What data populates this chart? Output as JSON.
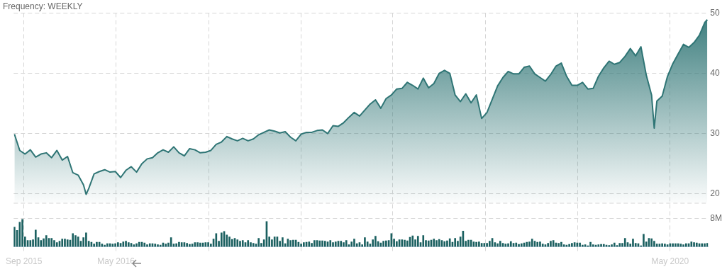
{
  "chart_data": {
    "type": "area",
    "title": "Frequency: WEEKLY",
    "x": [
      "2015-08-07",
      "2015-08-14",
      "2015-08-21",
      "2015-08-28",
      "2015-09-04",
      "2015-09-11",
      "2015-09-18",
      "2015-09-25",
      "2015-10-02",
      "2015-10-09",
      "2015-10-16",
      "2015-10-23",
      "2015-10-30",
      "2015-11-06",
      "2015-11-13",
      "2015-11-20",
      "2015-11-27",
      "2015-12-04",
      "2015-12-11",
      "2015-12-18",
      "2015-12-25",
      "2016-01-01",
      "2016-01-08",
      "2016-01-15",
      "2016-01-22",
      "2016-01-29",
      "2016-02-05",
      "2016-02-12",
      "2016-02-19",
      "2016-02-26",
      "2016-03-04",
      "2016-03-11",
      "2016-03-18",
      "2016-03-25",
      "2016-04-01",
      "2016-04-08",
      "2016-04-15",
      "2016-04-22",
      "2016-04-29",
      "2016-05-06",
      "2016-05-13",
      "2016-05-20",
      "2016-05-27",
      "2016-06-03",
      "2016-06-10",
      "2016-06-17",
      "2016-06-24",
      "2016-07-01",
      "2016-07-08",
      "2016-07-15",
      "2016-07-22",
      "2016-07-29",
      "2016-08-05",
      "2016-08-12",
      "2016-08-19",
      "2016-08-26",
      "2016-09-02",
      "2016-09-09",
      "2016-09-16",
      "2016-09-23",
      "2016-09-30",
      "2016-10-07",
      "2016-10-14",
      "2016-10-21",
      "2016-10-28",
      "2016-11-04",
      "2016-11-11",
      "2016-11-18",
      "2016-11-25",
      "2016-12-02",
      "2016-12-09",
      "2016-12-16",
      "2016-12-23",
      "2016-12-30",
      "2017-01-06",
      "2017-01-13",
      "2017-01-20",
      "2017-01-27",
      "2017-02-03",
      "2017-02-10",
      "2017-02-17",
      "2017-02-24",
      "2017-03-03",
      "2017-03-10",
      "2017-03-17",
      "2017-03-24",
      "2017-03-31",
      "2017-04-07",
      "2017-04-14",
      "2017-04-21",
      "2017-04-28",
      "2017-05-05",
      "2017-05-12",
      "2017-05-19",
      "2017-05-26",
      "2017-06-02",
      "2017-06-09",
      "2017-06-16",
      "2017-06-23",
      "2017-06-30",
      "2017-07-07",
      "2017-07-14",
      "2017-07-21",
      "2017-07-28",
      "2017-08-04",
      "2017-08-11",
      "2017-08-18",
      "2017-08-25",
      "2017-09-01",
      "2017-09-08",
      "2017-09-15",
      "2017-09-22",
      "2017-09-29",
      "2017-10-06",
      "2017-10-13",
      "2017-10-20",
      "2017-10-27",
      "2017-11-03",
      "2017-11-10",
      "2017-11-17",
      "2017-11-24",
      "2017-12-01",
      "2017-12-08",
      "2017-12-15",
      "2017-12-22",
      "2017-12-29",
      "2018-01-05",
      "2018-01-12",
      "2018-01-19",
      "2018-01-26",
      "2018-02-02",
      "2018-02-09",
      "2018-02-16",
      "2018-02-23",
      "2018-03-02",
      "2018-03-09",
      "2018-03-16",
      "2018-03-23",
      "2018-03-30",
      "2018-04-06",
      "2018-04-13",
      "2018-04-20",
      "2018-04-27",
      "2018-05-04",
      "2018-05-11",
      "2018-05-18",
      "2018-05-25",
      "2018-06-01",
      "2018-06-08",
      "2018-06-15",
      "2018-06-22",
      "2018-06-29",
      "2018-07-06",
      "2018-07-13",
      "2018-07-20",
      "2018-07-27",
      "2018-08-03",
      "2018-08-10",
      "2018-08-17",
      "2018-08-24",
      "2018-08-31",
      "2018-09-07",
      "2018-09-14",
      "2018-09-21",
      "2018-09-28",
      "2018-10-05",
      "2018-10-12",
      "2018-10-19",
      "2018-10-26",
      "2018-11-02",
      "2018-11-09",
      "2018-11-16",
      "2018-11-23",
      "2018-11-30",
      "2018-12-07",
      "2018-12-14",
      "2018-12-21",
      "2018-12-28",
      "2019-01-04",
      "2019-01-11",
      "2019-01-18",
      "2019-01-25",
      "2019-02-01",
      "2019-02-08",
      "2019-02-15",
      "2019-02-22",
      "2019-03-01",
      "2019-03-08",
      "2019-03-15",
      "2019-03-22",
      "2019-03-29",
      "2019-04-05",
      "2019-04-12",
      "2019-04-19",
      "2019-04-26",
      "2019-05-03",
      "2019-05-10",
      "2019-05-17",
      "2019-05-24",
      "2019-05-31",
      "2019-06-07",
      "2019-06-14",
      "2019-06-21",
      "2019-06-28",
      "2019-07-05",
      "2019-07-12",
      "2019-07-19",
      "2019-07-26",
      "2019-08-02",
      "2019-08-09",
      "2019-08-16",
      "2019-08-23",
      "2019-08-30",
      "2019-09-06",
      "2019-09-13",
      "2019-09-20",
      "2019-09-27",
      "2019-10-04",
      "2019-10-11",
      "2019-10-18",
      "2019-10-25",
      "2019-11-01",
      "2019-11-08",
      "2019-11-15",
      "2019-11-22",
      "2019-11-29",
      "2019-12-06",
      "2019-12-13",
      "2019-12-20",
      "2019-12-27",
      "2020-01-03",
      "2020-01-10",
      "2020-01-17",
      "2020-01-24",
      "2020-01-31",
      "2020-02-07",
      "2020-02-14",
      "2020-02-21",
      "2020-02-28",
      "2020-03-06",
      "2020-03-13",
      "2020-03-20",
      "2020-03-27",
      "2020-04-03",
      "2020-04-10",
      "2020-04-17",
      "2020-04-24",
      "2020-05-01",
      "2020-05-08",
      "2020-05-15",
      "2020-05-22",
      "2020-05-29",
      "2020-06-05",
      "2020-06-12",
      "2020-06-19",
      "2020-06-26",
      "2020-07-03",
      "2020-07-10",
      "2020-07-17",
      "2020-07-24",
      "2020-07-31",
      "2020-08-07"
    ],
    "xlim": [
      "2015-08-05",
      "2020-08-09"
    ],
    "xticks": [
      {
        "value": "2015-09-01",
        "label": "Sep 2015"
      },
      {
        "value": "2016-05-01",
        "label": "May 2016"
      },
      {
        "value": "2017-01-01",
        "label": null
      },
      {
        "value": "2017-09-01",
        "label": null
      },
      {
        "value": "2018-05-01",
        "label": null
      },
      {
        "value": "2019-01-01",
        "label": null
      },
      {
        "value": "2019-09-01",
        "label": null
      },
      {
        "value": "2020-05-01",
        "label": "May 2020"
      }
    ],
    "ylim": [
      18.5,
      50
    ],
    "yticks": [
      20,
      30,
      40,
      50
    ],
    "y2lim": [
      0,
      12.5
    ],
    "y2ticks": [
      {
        "value": 8,
        "label": "8M"
      }
    ],
    "grid": true,
    "marker": "none",
    "series": [
      {
        "color": "#2f7575",
        "x": [
          "2015-08-07",
          "2015-08-21",
          "2015-09-04",
          "2015-09-18",
          "2015-10-02",
          "2015-10-16",
          "2015-10-30",
          "2015-11-13",
          "2015-11-27",
          "2015-12-11",
          "2015-12-25",
          "2016-01-08",
          "2016-01-22",
          "2016-02-05",
          "2016-02-12",
          "2016-02-19",
          "2016-03-04",
          "2016-03-18",
          "2016-04-01",
          "2016-04-15",
          "2016-04-29",
          "2016-05-13",
          "2016-05-27",
          "2016-06-10",
          "2016-06-24",
          "2016-07-08",
          "2016-07-22",
          "2016-08-05",
          "2016-08-19",
          "2016-09-02",
          "2016-09-16",
          "2016-09-30",
          "2016-10-14",
          "2016-10-28",
          "2016-11-11",
          "2016-11-25",
          "2016-12-09",
          "2016-12-23",
          "2017-01-06",
          "2017-01-20",
          "2017-02-03",
          "2017-02-17",
          "2017-03-03",
          "2017-03-17",
          "2017-03-31",
          "2017-04-14",
          "2017-04-28",
          "2017-05-12",
          "2017-05-26",
          "2017-06-09",
          "2017-06-23",
          "2017-07-07",
          "2017-07-21",
          "2017-08-04",
          "2017-08-18",
          "2017-09-01",
          "2017-09-15",
          "2017-09-29",
          "2017-10-13",
          "2017-10-27",
          "2017-11-10",
          "2017-11-24",
          "2017-12-08",
          "2017-12-22",
          "2018-01-05",
          "2018-01-19",
          "2018-02-02",
          "2018-02-16",
          "2018-03-02",
          "2018-03-16",
          "2018-03-30",
          "2018-04-13",
          "2018-04-27",
          "2018-05-11",
          "2018-05-25",
          "2018-06-08",
          "2018-06-22",
          "2018-07-06",
          "2018-07-20",
          "2018-08-03",
          "2018-08-17",
          "2018-08-31",
          "2018-09-14",
          "2018-09-28",
          "2018-10-12",
          "2018-10-26",
          "2018-11-09",
          "2018-11-23",
          "2018-12-07",
          "2018-12-21",
          "2019-01-04",
          "2019-01-18",
          "2019-02-01",
          "2019-02-15",
          "2019-03-01",
          "2019-03-15",
          "2019-03-29",
          "2019-04-12",
          "2019-04-26",
          "2019-05-10",
          "2019-05-24",
          "2019-06-07",
          "2019-06-21",
          "2019-07-05",
          "2019-07-19",
          "2019-08-02",
          "2019-08-16",
          "2019-08-30",
          "2019-09-13",
          "2019-09-27",
          "2019-10-11",
          "2019-10-25",
          "2019-11-08",
          "2019-11-22",
          "2019-12-06",
          "2019-12-20",
          "2020-01-03",
          "2020-01-17",
          "2020-01-31",
          "2020-02-14",
          "2020-02-28",
          "2020-03-13",
          "2020-03-20",
          "2020-03-27",
          "2020-04-10",
          "2020-04-24",
          "2020-05-08",
          "2020-05-22",
          "2020-06-05",
          "2020-06-19",
          "2020-07-03",
          "2020-07-17",
          "2020-07-31",
          "2020-08-07"
        ],
        "values": [
          29.9,
          27.2,
          26.6,
          27.3,
          26.1,
          26.6,
          26.8,
          26.0,
          27.2,
          25.6,
          26.2,
          23.5,
          23.1,
          21.5,
          19.9,
          20.9,
          23.3,
          23.7,
          24.0,
          23.6,
          23.7,
          22.7,
          23.9,
          24.5,
          23.6,
          25.0,
          25.8,
          26.0,
          26.8,
          27.3,
          26.9,
          27.8,
          26.8,
          26.3,
          27.5,
          27.3,
          26.8,
          26.9,
          27.2,
          28.2,
          28.6,
          29.5,
          29.1,
          28.8,
          29.2,
          28.8,
          29.1,
          29.8,
          30.2,
          30.6,
          30.4,
          30.1,
          30.3,
          29.4,
          28.8,
          29.9,
          30.2,
          30.2,
          30.5,
          30.6,
          30.0,
          31.3,
          31.2,
          31.8,
          32.7,
          33.5,
          32.9,
          33.9,
          34.9,
          35.6,
          34.2,
          35.8,
          36.4,
          37.4,
          37.5,
          38.5,
          38.0,
          37.4,
          39.2,
          37.6,
          38.3,
          40.0,
          40.5,
          40.0,
          36.4,
          35.3,
          36.6,
          35.1,
          36.4,
          32.5,
          33.5,
          35.7,
          37.9,
          39.3,
          40.3,
          39.9,
          39.9,
          41.0,
          41.2,
          39.9,
          39.3,
          38.7,
          39.8,
          41.2,
          41.7,
          39.5,
          38.0,
          38.0,
          38.5,
          37.4,
          37.5,
          39.5,
          40.9,
          42.0,
          41.5,
          41.8,
          42.8,
          44.1,
          42.9,
          44.4,
          39.7,
          36.4,
          30.9,
          35.4,
          36.2,
          39.5,
          41.6,
          43.2,
          44.8,
          44.3,
          45.1,
          46.3,
          48.4,
          48.9
        ]
      },
      {
        "type": "bar",
        "axis": "y2",
        "color": "#1b6060",
        "values": [
          5.6,
          4.7,
          7.0,
          7.8,
          2.8,
          1.8,
          1.8,
          2.0,
          4.8,
          2.6,
          1.8,
          2.3,
          3.2,
          2.4,
          2.4,
          1.8,
          1.2,
          1.6,
          2.2,
          2.2,
          2.0,
          1.9,
          3.8,
          3.2,
          2.8,
          1.6,
          2.6,
          4.0,
          1.6,
          1.3,
          0.8,
          1.3,
          1.3,
          0.8,
          0.5,
          0.9,
          0.9,
          0.8,
          0.9,
          1.2,
          1.0,
          1.4,
          1.6,
          1.2,
          1.0,
          0.6,
          0.9,
          1.3,
          1.3,
          1.1,
          0.6,
          0.9,
          0.9,
          0.8,
          0.6,
          0.5,
          1.1,
          0.8,
          1.1,
          2.6,
          0.8,
          0.9,
          1.3,
          1.2,
          1.2,
          1.0,
          0.7,
          0.8,
          1.2,
          1.2,
          1.1,
          1.1,
          1.2,
          1.2,
          0.8,
          2.2,
          3.8,
          1.6,
          4.0,
          4.4,
          3.4,
          2.8,
          2.1,
          2.4,
          2.0,
          1.6,
          1.8,
          1.2,
          1.8,
          1.2,
          1.0,
          0.8,
          2.4,
          1.0,
          2.0,
          7.2,
          2.8,
          2.0,
          2.8,
          2.8,
          1.6,
          2.6,
          0.9,
          2.2,
          1.8,
          1.9,
          1.9,
          1.3,
          0.8,
          1.2,
          1.3,
          1.4,
          1.0,
          1.8,
          1.8,
          1.7,
          1.7,
          1.6,
          1.4,
          1.8,
          1.2,
          1.4,
          1.6,
          1.6,
          1.2,
          1.8,
          0.6,
          1.4,
          2.2,
          0.9,
          1.2,
          0.6,
          2.6,
          1.4,
          0.8,
          2.0,
          3.0,
          1.5,
          1.1,
          1.6,
          1.7,
          1.8,
          3.8,
          2.2,
          1.5,
          2.0,
          2.0,
          1.9,
          1.7,
          2.7,
          3.1,
          2.0,
          3.0,
          1.2,
          3.2,
          1.8,
          1.7,
          1.9,
          2.2,
          1.8,
          2.1,
          1.8,
          1.5,
          1.7,
          2.3,
          1.3,
          2.4,
          1.6,
          2.8,
          4.5,
          1.6,
          1.9,
          1.9,
          1.4,
          1.3,
          1.4,
          1.0,
          1.0,
          1.0,
          1.6,
          2.4,
          1.2,
          0.9,
          1.6,
          1.0,
          0.8,
          0.9,
          1.5,
          1.0,
          1.1,
          0.7,
          0.9,
          1.1,
          1.3,
          1.4,
          2.2,
          1.6,
          1.3,
          1.4,
          0.8,
          0.6,
          1.0,
          1.6,
          1.8,
          1.1,
          1.0,
          1.3,
          0.6,
          0.5,
          0.7,
          1.0,
          1.2,
          1.1,
          1.1,
          0.5,
          0.6,
          0.3,
          1.3,
          0.6,
          0.5,
          0.6,
          0.7,
          0.7,
          0.5,
          0.4,
          0.6,
          1.1,
          0.4,
          1.0,
          1.0,
          2.4,
          1.2,
          0.8,
          2.2,
          1.0,
          0.9,
          0.3,
          3.6,
          1.4,
          2.4,
          2.3,
          1.6,
          0.8,
          0.8,
          0.9,
          0.8,
          0.6,
          0.9,
          0.9,
          0.9,
          0.9,
          0.8,
          0.6,
          0.9,
          0.9,
          1.4,
          1.2,
          1.1,
          0.9,
          0.9,
          0.9,
          1.0
        ]
      }
    ]
  }
}
